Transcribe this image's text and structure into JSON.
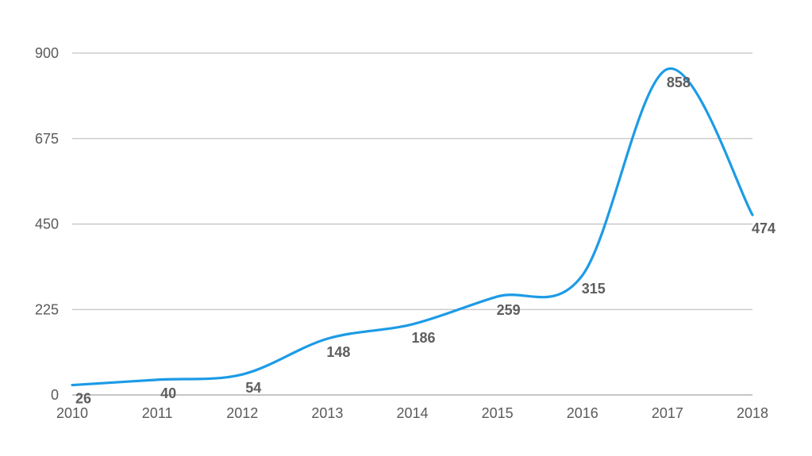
{
  "chart_data": {
    "type": "line",
    "x": [
      "2010",
      "2011",
      "2012",
      "2013",
      "2014",
      "2015",
      "2016",
      "2017",
      "2018"
    ],
    "y_ticks": [
      "0",
      "225",
      "450",
      "675",
      "900"
    ],
    "series": [
      {
        "values": [
          26,
          40,
          54,
          148,
          186,
          259,
          315,
          858,
          474
        ],
        "color": "#1c9be6"
      }
    ],
    "ylim": [
      0,
      900
    ],
    "grid": true,
    "smooth": true,
    "data_labels": true
  }
}
